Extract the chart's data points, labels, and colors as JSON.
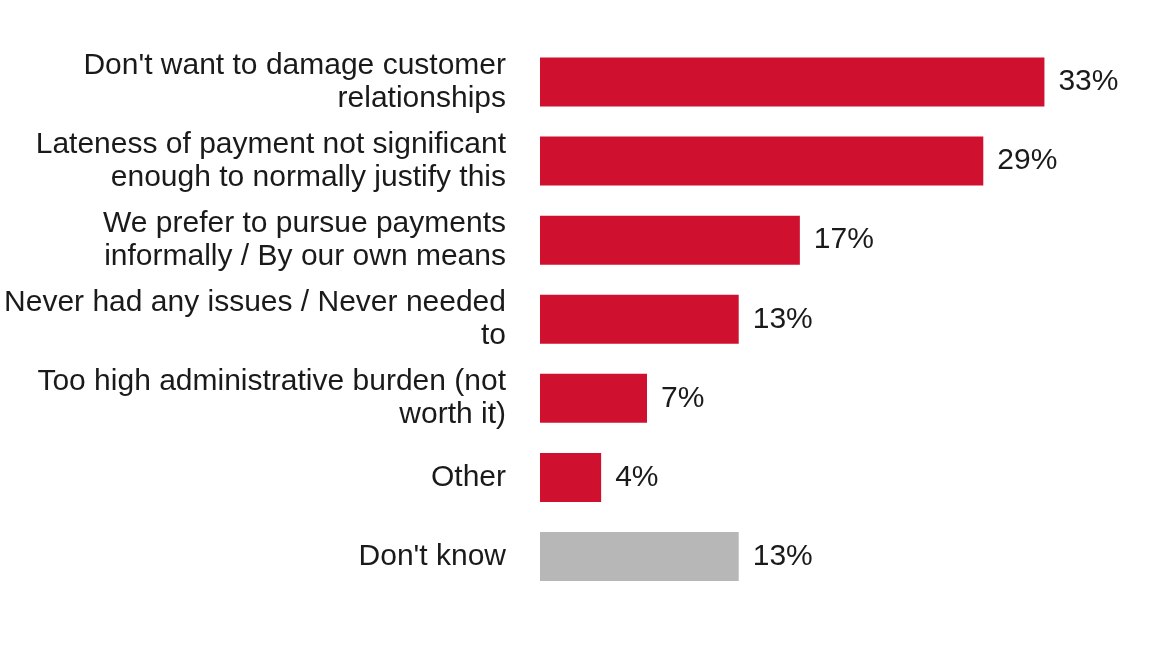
{
  "chart_data": {
    "type": "bar",
    "orientation": "horizontal",
    "categories": [
      "Don't want to damage customer relationships",
      "Lateness of payment not significant enough to normally justify this",
      "We prefer to pursue payments informally / By our own means",
      "Never had any issues / Never needed to",
      "Too high administrative burden (not worth it)",
      "Other",
      "Don't know"
    ],
    "values": [
      33,
      29,
      17,
      13,
      7,
      4,
      13
    ],
    "colors": [
      "#d0102f",
      "#d0102f",
      "#d0102f",
      "#d0102f",
      "#d0102f",
      "#d0102f",
      "#b7b7b7"
    ],
    "value_labels": [
      "33%",
      "29%",
      "17%",
      "13%",
      "7%",
      "4%",
      "13%"
    ],
    "legend": false
  }
}
